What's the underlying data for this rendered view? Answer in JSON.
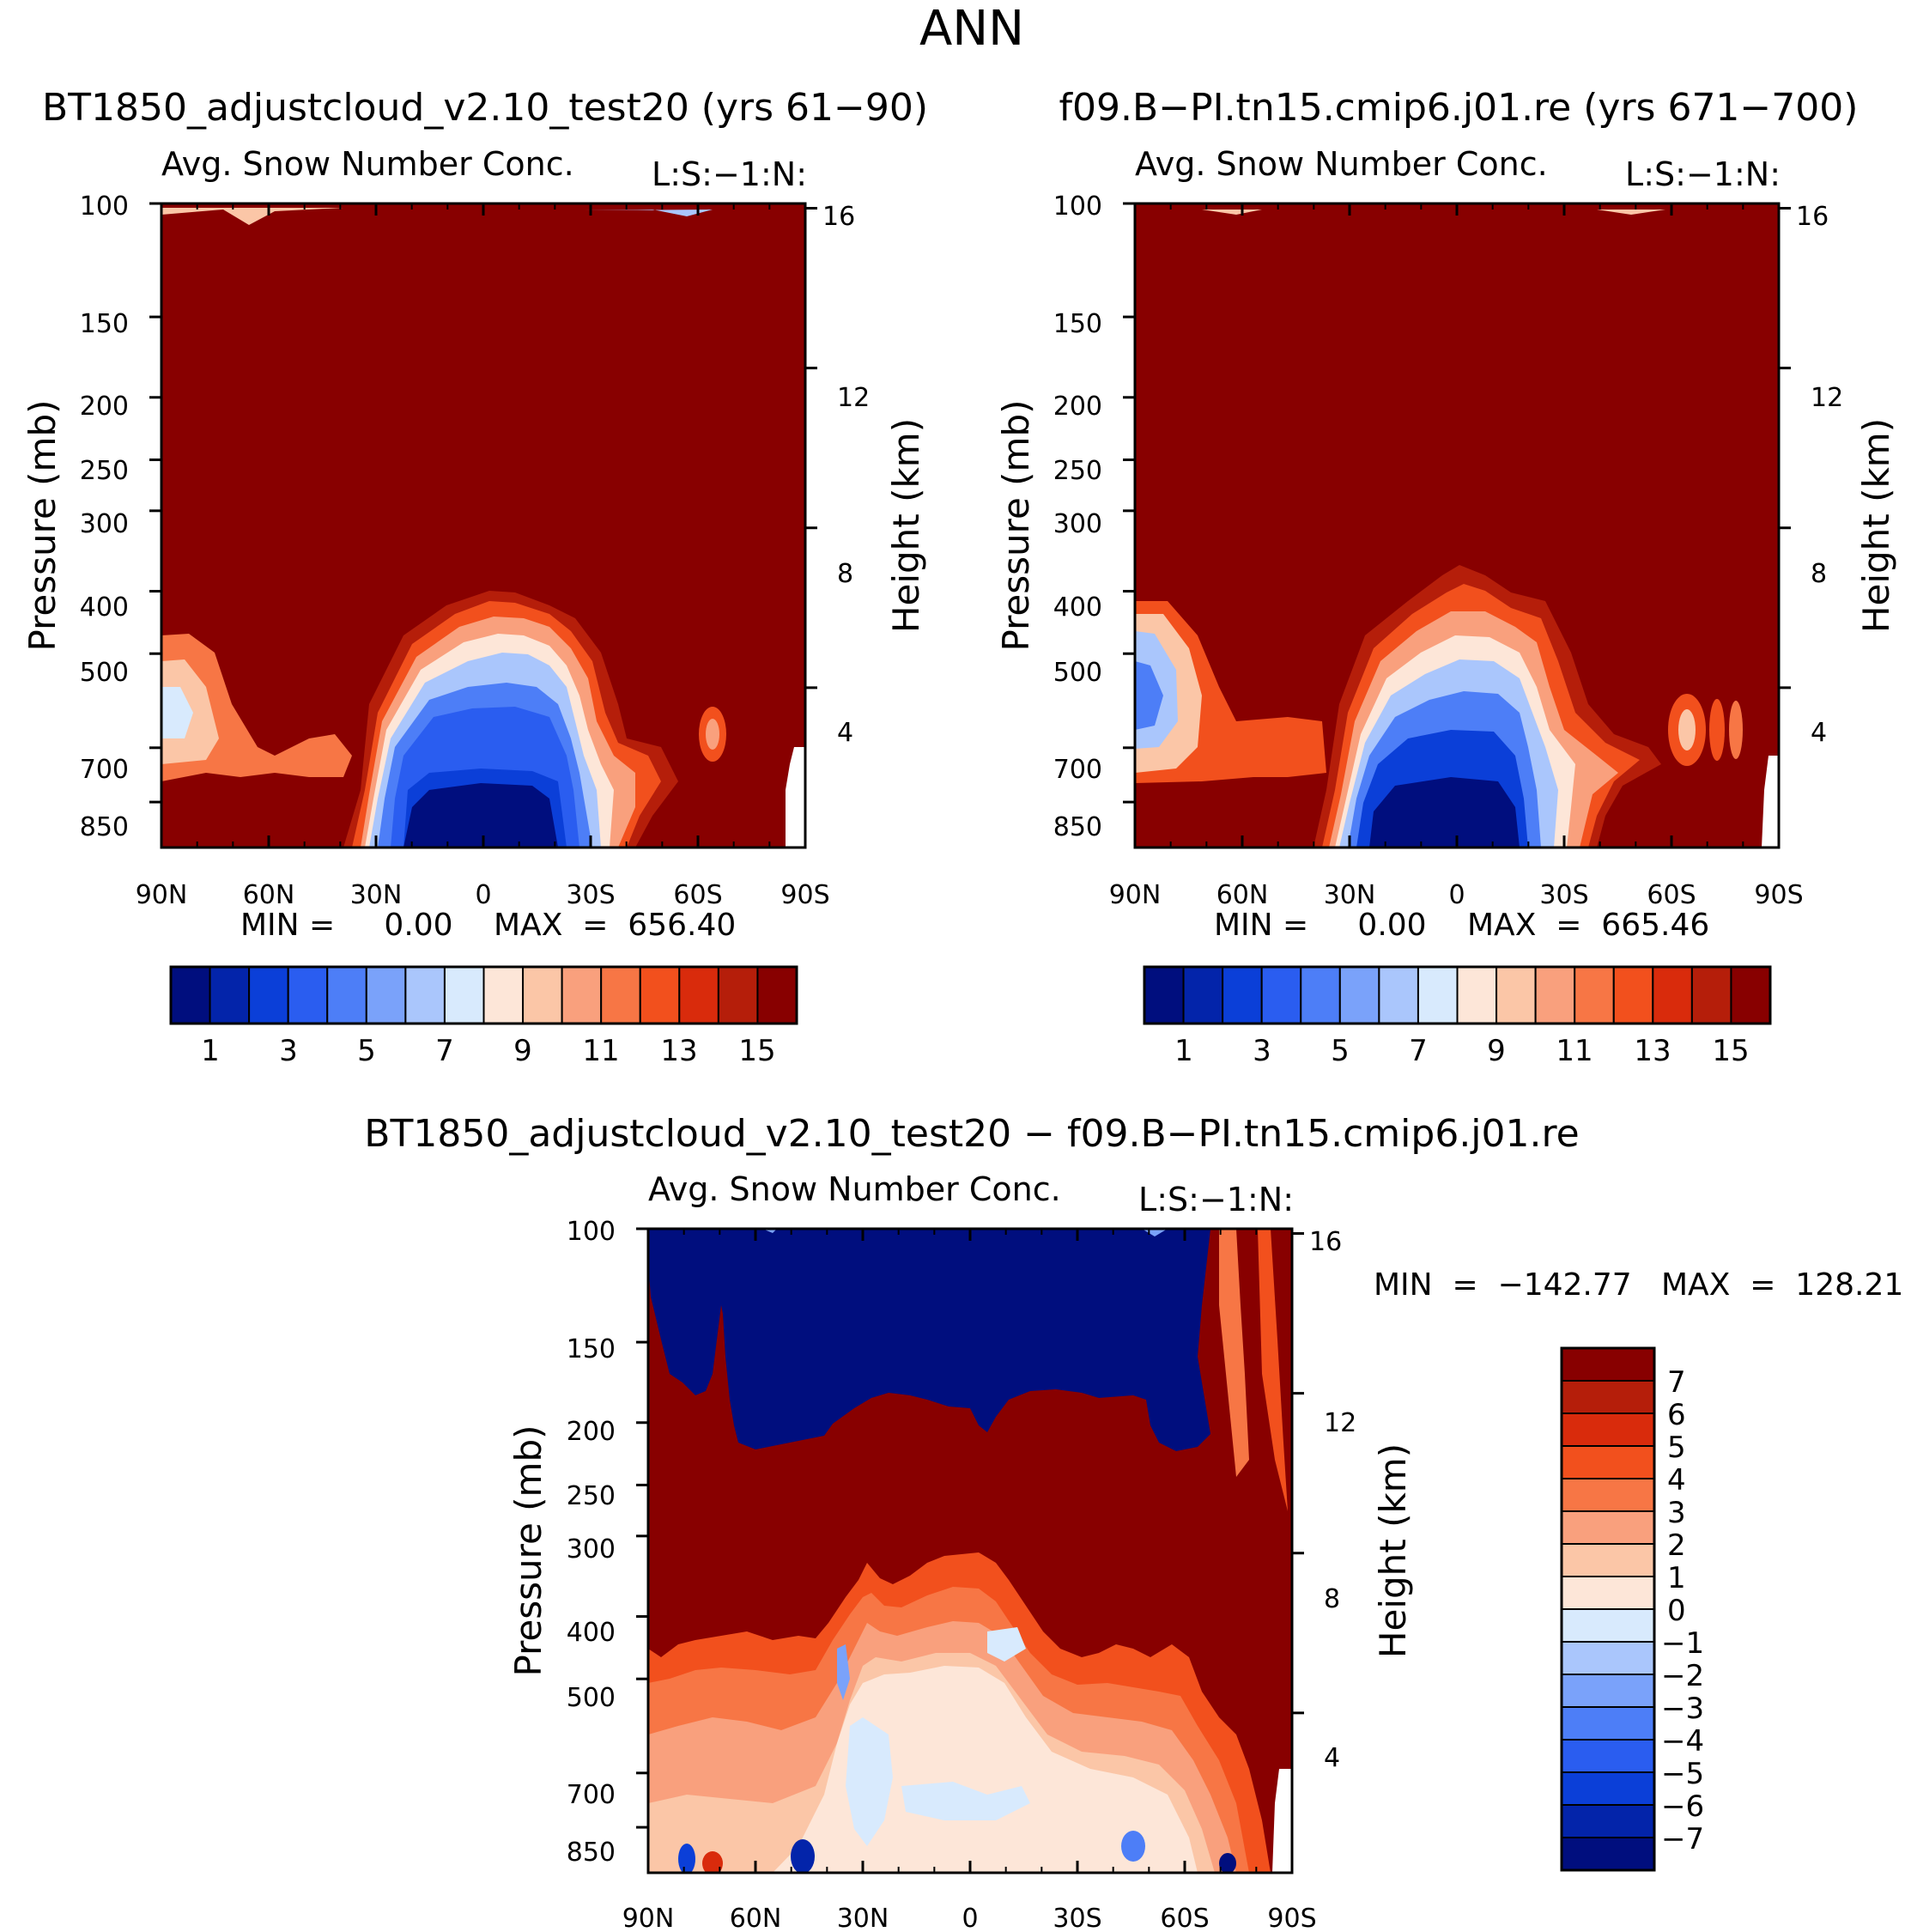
{
  "page_title": "ANN",
  "colors": {
    "abs_palette": [
      "#000e7e",
      "#0324aa",
      "#0b3fd8",
      "#2a5df0",
      "#4d7ef7",
      "#7aa2fa",
      "#aac6fc",
      "#d8eafd",
      "#fde6d8",
      "#fbc6a7",
      "#f9a07d",
      "#f77645",
      "#f2501d",
      "#d92b0c",
      "#b51e0a",
      "#880000"
    ],
    "diff_palette": [
      "#000e7e",
      "#0324aa",
      "#0b3fd8",
      "#2a5df0",
      "#4d7ef7",
      "#7aa2fa",
      "#aac6fc",
      "#d8eafd",
      "#fde6d8",
      "#fbc6a7",
      "#f9a07d",
      "#f77645",
      "#f2501d",
      "#d92b0c",
      "#b51e0a",
      "#880000"
    ]
  },
  "chart_data": [
    {
      "id": "panel_a",
      "type": "contour",
      "title": "BT1850_adjustcloud_v2.10_test20 (yrs 61−90)",
      "subtitle": "Avg. Snow Number Conc.",
      "right_string": "L:S:−1:N:",
      "xlabel": "",
      "ylabel": "Pressure (mb)",
      "y2label": "Height (km)",
      "x_ticks": [
        "90N",
        "60N",
        "30N",
        "0",
        "30S",
        "60S",
        "90S"
      ],
      "x_range": [
        90,
        -90
      ],
      "y_ticks": [
        100,
        150,
        200,
        250,
        300,
        400,
        500,
        700,
        850
      ],
      "y_range": [
        100,
        1000
      ],
      "y2_ticks": [
        16,
        12,
        8,
        4
      ],
      "min_text": "MIN =     0.00",
      "max_text": "MAX  =  656.40",
      "min": 0.0,
      "max": 656.4,
      "colorbar_labels": [
        "1",
        "3",
        "5",
        "7",
        "9",
        "11",
        "13",
        "15"
      ],
      "colorbar_levels": [
        1,
        3,
        5,
        7,
        9,
        11,
        13,
        15
      ]
    },
    {
      "id": "panel_b",
      "type": "contour",
      "title": "f09.B−PI.tn15.cmip6.j01.re (yrs 671−700)",
      "subtitle": "Avg. Snow Number Conc.",
      "right_string": "L:S:−1:N:",
      "xlabel": "",
      "ylabel": "Pressure (mb)",
      "y2label": "Height (km)",
      "x_ticks": [
        "90N",
        "60N",
        "30N",
        "0",
        "30S",
        "60S",
        "90S"
      ],
      "x_range": [
        90,
        -90
      ],
      "y_ticks": [
        100,
        150,
        200,
        250,
        300,
        400,
        500,
        700,
        850
      ],
      "y_range": [
        100,
        1000
      ],
      "y2_ticks": [
        16,
        12,
        8,
        4
      ],
      "min_text": "MIN =     0.00",
      "max_text": "MAX  =  665.46",
      "min": 0.0,
      "max": 665.46,
      "colorbar_labels": [
        "1",
        "3",
        "5",
        "7",
        "9",
        "11",
        "13",
        "15"
      ],
      "colorbar_levels": [
        1,
        3,
        5,
        7,
        9,
        11,
        13,
        15
      ]
    },
    {
      "id": "panel_diff",
      "type": "contour",
      "title": "BT1850_adjustcloud_v2.10_test20 − f09.B−PI.tn15.cmip6.j01.re",
      "subtitle": "Avg. Snow Number Conc.",
      "right_string": "L:S:−1:N:",
      "xlabel": "",
      "ylabel": "Pressure (mb)",
      "y2label": "Height (km)",
      "x_ticks": [
        "90N",
        "60N",
        "30N",
        "0",
        "30S",
        "60S",
        "90S"
      ],
      "x_range": [
        90,
        -90
      ],
      "y_ticks": [
        100,
        150,
        200,
        250,
        300,
        400,
        500,
        700,
        850
      ],
      "y_range": [
        100,
        1000
      ],
      "y2_ticks": [
        16,
        12,
        8,
        4
      ],
      "min_text": "MIN  =  −142.77",
      "max_text": "MAX  =  128.21",
      "min": -142.77,
      "max": 128.21,
      "colorbar_labels": [
        "7",
        "6",
        "5",
        "4",
        "3",
        "2",
        "1",
        "0",
        "−1",
        "−2",
        "−3",
        "−4",
        "−5",
        "−6",
        "−7"
      ],
      "colorbar_levels": [
        7,
        6,
        5,
        4,
        3,
        2,
        1,
        0,
        -1,
        -2,
        -3,
        -4,
        -5,
        -6,
        -7
      ]
    }
  ]
}
